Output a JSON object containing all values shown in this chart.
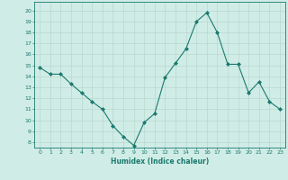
{
  "x": [
    0,
    1,
    2,
    3,
    4,
    5,
    6,
    7,
    8,
    9,
    10,
    11,
    12,
    13,
    14,
    15,
    16,
    17,
    18,
    19,
    20,
    21,
    22,
    23
  ],
  "y": [
    14.8,
    14.2,
    14.2,
    13.3,
    12.5,
    11.7,
    11.0,
    9.5,
    8.5,
    7.7,
    9.8,
    10.6,
    13.9,
    15.2,
    16.5,
    19.0,
    19.8,
    18.0,
    15.1,
    15.1,
    12.5,
    13.5,
    11.7,
    11.0
  ],
  "line_color": "#1a7a6e",
  "marker": "D",
  "marker_size": 2,
  "bg_color": "#d0ece6",
  "grid_color": "#b8d8d0",
  "xlabel": "Humidex (Indice chaleur)",
  "ylabel_ticks": [
    8,
    9,
    10,
    11,
    12,
    13,
    14,
    15,
    16,
    17,
    18,
    19,
    20
  ],
  "ylim": [
    7.5,
    20.8
  ],
  "xlim": [
    -0.5,
    23.5
  ],
  "xticks": [
    0,
    1,
    2,
    3,
    4,
    5,
    6,
    7,
    8,
    9,
    10,
    11,
    12,
    13,
    14,
    15,
    16,
    17,
    18,
    19,
    20,
    21,
    22,
    23
  ],
  "axis_color": "#1a7a6e",
  "tick_color": "#1a7a6e",
  "label_color": "#1a7a6e"
}
